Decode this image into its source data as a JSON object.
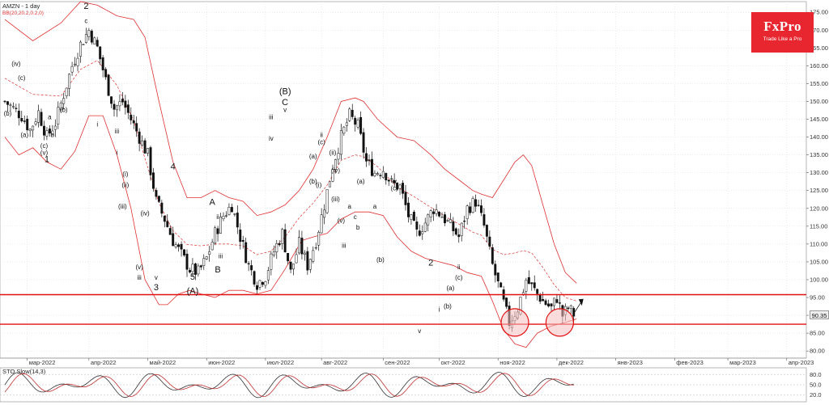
{
  "header": {
    "symbol_timeframe": "AMZN - 1 day",
    "indicator": "BB(20,20.2,0.2,0)"
  },
  "logo": {
    "brand": "FxPro",
    "tagline": "Trade Like a Pro"
  },
  "stochastic": {
    "title": "STO Slow(14,3)",
    "levels": [
      "80.0",
      "50.0",
      "20.0"
    ]
  },
  "last_price": "90.35",
  "colors": {
    "bullish": "#ffffff",
    "bearish": "#111111",
    "bands": "#e03030",
    "support_resistance": "#e01010",
    "circle_fill": "#f7c0c0",
    "stoch_main": "#333333",
    "stoch_signal": "#c03030"
  },
  "chart_data": {
    "type": "candlestick",
    "y_axis": {
      "min": 78,
      "max": 178,
      "ticks": [
        80,
        85,
        90,
        95,
        100,
        105,
        110,
        115,
        120,
        125,
        130,
        135,
        140,
        145,
        150,
        155,
        160,
        165,
        170,
        175
      ]
    },
    "x_axis_labels": [
      {
        "label": "мар-2022",
        "idx": 8
      },
      {
        "label": "апр-2022",
        "idx": 30
      },
      {
        "label": "май-2022",
        "idx": 51
      },
      {
        "label": "июн-2022",
        "idx": 72
      },
      {
        "label": "июл-2022",
        "idx": 93
      },
      {
        "label": "авг-2022",
        "idx": 113
      },
      {
        "label": "сен-2022",
        "idx": 135
      },
      {
        "label": "окт-2022",
        "idx": 155
      },
      {
        "label": "ноя-2022",
        "idx": 176
      },
      {
        "label": "дек-2022",
        "idx": 197
      },
      {
        "label": "янв-2023",
        "idx": 218
      },
      {
        "label": "фев-2023",
        "idx": 239
      },
      {
        "label": "мар-2023",
        "idx": 258
      },
      {
        "label": "апр-2023",
        "idx": 279
      }
    ],
    "close_path": [
      [
        0,
        150
      ],
      [
        3,
        148
      ],
      [
        6,
        146
      ],
      [
        9,
        142
      ],
      [
        12,
        147
      ],
      [
        15,
        140
      ],
      [
        18,
        144
      ],
      [
        21,
        152
      ],
      [
        24,
        160
      ],
      [
        27,
        166
      ],
      [
        30,
        170
      ],
      [
        33,
        165
      ],
      [
        36,
        156
      ],
      [
        39,
        148
      ],
      [
        42,
        150
      ],
      [
        45,
        145
      ],
      [
        48,
        140
      ],
      [
        51,
        135
      ],
      [
        54,
        122
      ],
      [
        57,
        117
      ],
      [
        60,
        111
      ],
      [
        63,
        107
      ],
      [
        66,
        103
      ],
      [
        69,
        102
      ],
      [
        72,
        106
      ],
      [
        75,
        113
      ],
      [
        78,
        118
      ],
      [
        81,
        121
      ],
      [
        84,
        112
      ],
      [
        87,
        104
      ],
      [
        90,
        99
      ],
      [
        93,
        101
      ],
      [
        96,
        108
      ],
      [
        99,
        113
      ],
      [
        102,
        102
      ],
      [
        105,
        110
      ],
      [
        108,
        104
      ],
      [
        111,
        111
      ],
      [
        114,
        121
      ],
      [
        117,
        132
      ],
      [
        120,
        140
      ],
      [
        123,
        146
      ],
      [
        126,
        143
      ],
      [
        129,
        133
      ],
      [
        132,
        130
      ],
      [
        135,
        131
      ],
      [
        138,
        127
      ],
      [
        141,
        126
      ],
      [
        144,
        118
      ],
      [
        147,
        113
      ],
      [
        150,
        116
      ],
      [
        153,
        120
      ],
      [
        156,
        118
      ],
      [
        159,
        115
      ],
      [
        162,
        112
      ],
      [
        165,
        120
      ],
      [
        168,
        122
      ],
      [
        171,
        115
      ],
      [
        174,
        104
      ],
      [
        177,
        96
      ],
      [
        180,
        88
      ],
      [
        183,
        92
      ],
      [
        186,
        100
      ],
      [
        189,
        97
      ],
      [
        192,
        94
      ],
      [
        195,
        92
      ],
      [
        197,
        95
      ],
      [
        199,
        90
      ],
      [
        201,
        92
      ],
      [
        203,
        90.35
      ]
    ],
    "upper_band": [
      [
        0,
        173
      ],
      [
        10,
        167
      ],
      [
        20,
        172
      ],
      [
        27,
        178
      ],
      [
        33,
        177
      ],
      [
        40,
        174
      ],
      [
        46,
        173
      ],
      [
        50,
        168
      ],
      [
        55,
        150
      ],
      [
        60,
        133
      ],
      [
        65,
        123
      ],
      [
        70,
        123
      ],
      [
        75,
        125
      ],
      [
        80,
        123
      ],
      [
        85,
        122
      ],
      [
        90,
        118
      ],
      [
        95,
        119
      ],
      [
        100,
        121
      ],
      [
        105,
        125
      ],
      [
        110,
        131
      ],
      [
        115,
        140
      ],
      [
        120,
        150
      ],
      [
        125,
        151
      ],
      [
        128,
        150
      ],
      [
        133,
        145
      ],
      [
        140,
        140
      ],
      [
        146,
        139
      ],
      [
        152,
        135
      ],
      [
        157,
        131
      ],
      [
        162,
        128
      ],
      [
        167,
        125
      ],
      [
        170,
        124
      ],
      [
        174,
        123
      ],
      [
        178,
        128
      ],
      [
        182,
        133
      ],
      [
        185,
        135
      ],
      [
        188,
        132
      ],
      [
        192,
        121
      ],
      [
        196,
        110
      ],
      [
        200,
        102
      ],
      [
        204,
        99
      ]
    ],
    "lower_band": [
      [
        0,
        140
      ],
      [
        5,
        135
      ],
      [
        10,
        137
      ],
      [
        15,
        133
      ],
      [
        20,
        131
      ],
      [
        25,
        136
      ],
      [
        30,
        146
      ],
      [
        35,
        146
      ],
      [
        40,
        135
      ],
      [
        45,
        120
      ],
      [
        50,
        100
      ],
      [
        55,
        93
      ],
      [
        58,
        93
      ],
      [
        62,
        96
      ],
      [
        66,
        97
      ],
      [
        70,
        96
      ],
      [
        75,
        95
      ],
      [
        80,
        97
      ],
      [
        85,
        97
      ],
      [
        90,
        96
      ],
      [
        95,
        97
      ],
      [
        100,
        103
      ],
      [
        106,
        111
      ],
      [
        110,
        112
      ],
      [
        115,
        113
      ],
      [
        120,
        117
      ],
      [
        125,
        119
      ],
      [
        130,
        119
      ],
      [
        135,
        118
      ],
      [
        140,
        112
      ],
      [
        145,
        108
      ],
      [
        150,
        106
      ],
      [
        155,
        105
      ],
      [
        160,
        104
      ],
      [
        165,
        102
      ],
      [
        170,
        101
      ],
      [
        174,
        94
      ],
      [
        178,
        86
      ],
      [
        182,
        82
      ],
      [
        186,
        81
      ],
      [
        190,
        85
      ],
      [
        195,
        87
      ],
      [
        200,
        88
      ],
      [
        204,
        89
      ]
    ],
    "support_levels": [
      87.5,
      95.8
    ],
    "highlight_circles": [
      [
        182,
        88
      ],
      [
        198,
        88
      ]
    ],
    "wave_labels": [
      {
        "t": "2",
        "i": 29,
        "p": 176,
        "big": true
      },
      {
        "t": "1",
        "i": 15,
        "p": 133,
        "big": true
      },
      {
        "t": "(iv)",
        "i": 4,
        "p": 160
      },
      {
        "t": "(c)",
        "i": 6,
        "p": 156
      },
      {
        "t": "(b)",
        "i": 1,
        "p": 146
      },
      {
        "t": "(a)",
        "i": 7,
        "p": 140
      },
      {
        "t": "(c)",
        "i": 14,
        "p": 137
      },
      {
        "t": "(v)",
        "i": 14,
        "p": 135
      },
      {
        "t": "a",
        "i": 16,
        "p": 145
      },
      {
        "t": "b",
        "i": 17,
        "p": 140
      },
      {
        "t": "(b)",
        "i": 21,
        "p": 147
      },
      {
        "t": "c",
        "i": 29,
        "p": 172
      },
      {
        "t": "ii",
        "i": 35,
        "p": 159
      },
      {
        "t": "i",
        "i": 33,
        "p": 143
      },
      {
        "t": "iii",
        "i": 40,
        "p": 141
      },
      {
        "t": "i",
        "i": 40,
        "p": 135
      },
      {
        "t": "(i)",
        "i": 43,
        "p": 129
      },
      {
        "t": "(ii)",
        "i": 43,
        "p": 126
      },
      {
        "t": "(iii)",
        "i": 42,
        "p": 120
      },
      {
        "t": "(iv)",
        "i": 50,
        "p": 118
      },
      {
        "t": "(v)",
        "i": 48,
        "p": 103
      },
      {
        "t": "iii",
        "i": 48,
        "p": 100
      },
      {
        "t": "4",
        "i": 60,
        "p": 131,
        "big": true
      },
      {
        "t": "3",
        "i": 54,
        "p": 97,
        "big": true
      },
      {
        "t": "v",
        "i": 54,
        "p": 100
      },
      {
        "t": "A",
        "i": 74,
        "p": 121,
        "big": true
      },
      {
        "t": "B",
        "i": 76,
        "p": 102,
        "big": true
      },
      {
        "t": "5",
        "i": 67,
        "p": 100,
        "big": true
      },
      {
        "t": "(A)",
        "i": 67,
        "p": 96,
        "big": true
      },
      {
        "t": "ii",
        "i": 76,
        "p": 117
      },
      {
        "t": "iii",
        "i": 77,
        "p": 106
      },
      {
        "t": "(B)",
        "i": 100,
        "p": 152,
        "big": true
      },
      {
        "t": "C",
        "i": 100,
        "p": 149,
        "big": true
      },
      {
        "t": "v",
        "i": 100,
        "p": 147
      },
      {
        "t": "iii",
        "i": 95,
        "p": 145
      },
      {
        "t": "iv",
        "i": 95,
        "p": 139
      },
      {
        "t": "ii",
        "i": 113,
        "p": 140
      },
      {
        "t": "(c)",
        "i": 113,
        "p": 138
      },
      {
        "t": "(a)",
        "i": 110,
        "p": 134
      },
      {
        "t": "(ii)",
        "i": 117,
        "p": 135
      },
      {
        "t": "(iv)",
        "i": 118,
        "p": 130
      },
      {
        "t": "(i)",
        "i": 112,
        "p": 126
      },
      {
        "t": "(b)",
        "i": 110,
        "p": 127
      },
      {
        "t": "(iii)",
        "i": 118,
        "p": 122
      },
      {
        "t": "a",
        "i": 123,
        "p": 120
      },
      {
        "t": "b",
        "i": 126,
        "p": 114
      },
      {
        "t": "c",
        "i": 125,
        "p": 117
      },
      {
        "t": "(v)",
        "i": 120,
        "p": 116
      },
      {
        "t": "iii",
        "i": 121,
        "p": 109
      },
      {
        "t": "(a)",
        "i": 127,
        "p": 127
      },
      {
        "t": "(b)",
        "i": 134,
        "p": 105
      },
      {
        "t": "(c)",
        "i": 139,
        "p": 125
      },
      {
        "t": "iv",
        "i": 139,
        "p": 127
      },
      {
        "t": "a",
        "i": 132,
        "p": 120
      },
      {
        "t": "2",
        "i": 152,
        "p": 104,
        "big": true
      },
      {
        "t": "v",
        "i": 148,
        "p": 85
      },
      {
        "t": "i",
        "i": 155,
        "p": 91
      },
      {
        "t": "(a)",
        "i": 159,
        "p": 97
      },
      {
        "t": "(b)",
        "i": 158,
        "p": 92
      },
      {
        "t": "(c)",
        "i": 162,
        "p": 100
      },
      {
        "t": "ii",
        "i": 162,
        "p": 103
      }
    ]
  }
}
